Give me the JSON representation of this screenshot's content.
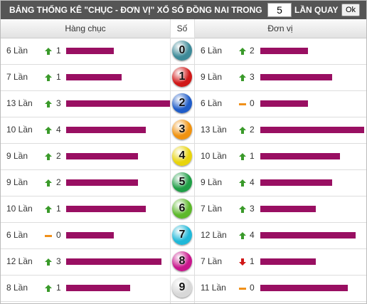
{
  "header": {
    "title": "BẢNG THỐNG KÊ \"CHỤC - ĐƠN VỊ\" XỔ SỐ ĐỒNG NAI TRONG",
    "input_value": "5",
    "suffix": "LẦN QUAY",
    "button": "Ok"
  },
  "columns": {
    "left": "Hàng chục",
    "center": "Số",
    "right": "Đơn vị"
  },
  "bar_color": "#990f62",
  "rows": [
    {
      "digit": "0",
      "ball_color": "#3d8a98",
      "left": {
        "count": {
          "value": 6,
          "label": "6 Lần"
        },
        "trend": "up",
        "change": "1"
      },
      "right": {
        "count": {
          "value": 6,
          "label": "6 Lần"
        },
        "trend": "up",
        "change": "2"
      }
    },
    {
      "digit": "1",
      "ball_color": "#d01818",
      "left": {
        "count": {
          "value": 7,
          "label": "7 Lần"
        },
        "trend": "up",
        "change": "1"
      },
      "right": {
        "count": {
          "value": 9,
          "label": "9 Lần"
        },
        "trend": "up",
        "change": "3"
      }
    },
    {
      "digit": "2",
      "ball_color": "#1f5cc8",
      "left": {
        "count": {
          "value": 13,
          "label": "13 Lần"
        },
        "trend": "up",
        "change": "3"
      },
      "right": {
        "count": {
          "value": 6,
          "label": "6 Lần"
        },
        "trend": "flat",
        "change": "0"
      }
    },
    {
      "digit": "3",
      "ball_color": "#f0920f",
      "left": {
        "count": {
          "value": 10,
          "label": "10 Lần"
        },
        "trend": "up",
        "change": "4"
      },
      "right": {
        "count": {
          "value": 13,
          "label": "13 Lần"
        },
        "trend": "up",
        "change": "2"
      }
    },
    {
      "digit": "4",
      "ball_color": "#e8d40c",
      "left": {
        "count": {
          "value": 9,
          "label": "9 Lần"
        },
        "trend": "up",
        "change": "2"
      },
      "right": {
        "count": {
          "value": 10,
          "label": "10 Lần"
        },
        "trend": "up",
        "change": "1"
      }
    },
    {
      "digit": "5",
      "ball_color": "#1f9e46",
      "left": {
        "count": {
          "value": 9,
          "label": "9 Lần"
        },
        "trend": "up",
        "change": "2"
      },
      "right": {
        "count": {
          "value": 9,
          "label": "9 Lần"
        },
        "trend": "up",
        "change": "4"
      }
    },
    {
      "digit": "6",
      "ball_color": "#5cb82a",
      "left": {
        "count": {
          "value": 10,
          "label": "10 Lần"
        },
        "trend": "up",
        "change": "1"
      },
      "right": {
        "count": {
          "value": 7,
          "label": "7 Lần"
        },
        "trend": "up",
        "change": "3"
      }
    },
    {
      "digit": "7",
      "ball_color": "#1fb8d8",
      "left": {
        "count": {
          "value": 6,
          "label": "6 Lần"
        },
        "trend": "flat",
        "change": "0"
      },
      "right": {
        "count": {
          "value": 12,
          "label": "12 Lần"
        },
        "trend": "up",
        "change": "4"
      }
    },
    {
      "digit": "8",
      "ball_color": "#c8168c",
      "left": {
        "count": {
          "value": 12,
          "label": "12 Lần"
        },
        "trend": "up",
        "change": "3"
      },
      "right": {
        "count": {
          "value": 7,
          "label": "7 Lần"
        },
        "trend": "down",
        "change": "1"
      }
    },
    {
      "digit": "9",
      "ball_color": "#d8d8d8",
      "left": {
        "count": {
          "value": 8,
          "label": "8 Lần"
        },
        "trend": "up",
        "change": "1"
      },
      "right": {
        "count": {
          "value": 11,
          "label": "11 Lần"
        },
        "trend": "flat",
        "change": "0"
      }
    }
  ]
}
